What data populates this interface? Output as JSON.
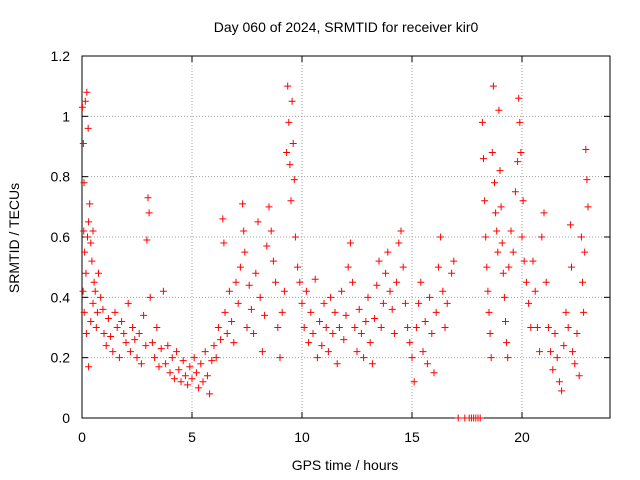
{
  "chart_data": {
    "type": "scatter",
    "title": "Day 060 of 2024, SRMTID for receiver kir0",
    "xlabel": "GPS time / hours",
    "ylabel": "SRMTID / TECUs",
    "xlim": [
      0,
      24
    ],
    "ylim": [
      0,
      1.2
    ],
    "xticks": [
      0,
      5,
      10,
      15,
      20
    ],
    "yticks": [
      0,
      0.2,
      0.4,
      0.6,
      0.8,
      1,
      1.2
    ],
    "ytick_labels": [
      "0",
      "0.2",
      "0.4",
      "0.6",
      "0.8",
      "1",
      "1.2"
    ],
    "grid": true,
    "marker": "+",
    "color": "#ff0000",
    "series": [
      {
        "name": "SRMTID",
        "points": [
          [
            0.02,
            1.03
          ],
          [
            0.06,
            0.91
          ],
          [
            0.09,
            0.78
          ],
          [
            0.15,
            1.05
          ],
          [
            0.22,
            1.08
          ],
          [
            0.28,
            0.96
          ],
          [
            0.35,
            0.71
          ],
          [
            0.08,
            0.62
          ],
          [
            0.12,
            0.55
          ],
          [
            0.18,
            0.48
          ],
          [
            0.25,
            0.6
          ],
          [
            0.3,
            0.65
          ],
          [
            0.4,
            0.58
          ],
          [
            0.45,
            0.52
          ],
          [
            0.5,
            0.62
          ],
          [
            0.55,
            0.45
          ],
          [
            0.6,
            0.42
          ],
          [
            0.7,
            0.35
          ],
          [
            0.05,
            0.42
          ],
          [
            0.1,
            0.35
          ],
          [
            0.2,
            0.28
          ],
          [
            0.3,
            0.17
          ],
          [
            0.4,
            0.32
          ],
          [
            0.5,
            0.38
          ],
          [
            0.65,
            0.3
          ],
          [
            0.75,
            0.48
          ],
          [
            0.85,
            0.4
          ],
          [
            0.95,
            0.36
          ],
          [
            1.0,
            0.28
          ],
          [
            1.1,
            0.24
          ],
          [
            1.2,
            0.33
          ],
          [
            1.3,
            0.27
          ],
          [
            1.4,
            0.22
          ],
          [
            1.5,
            0.35
          ],
          [
            1.6,
            0.3
          ],
          [
            1.7,
            0.2
          ],
          [
            1.8,
            0.32
          ],
          [
            1.9,
            0.28
          ],
          [
            2.0,
            0.25
          ],
          [
            2.1,
            0.38
          ],
          [
            2.2,
            0.22
          ],
          [
            2.3,
            0.3
          ],
          [
            2.4,
            0.26
          ],
          [
            2.5,
            0.2
          ],
          [
            2.6,
            0.28
          ],
          [
            2.7,
            0.18
          ],
          [
            2.8,
            0.34
          ],
          [
            2.9,
            0.24
          ],
          [
            3.0,
            0.73
          ],
          [
            3.05,
            0.68
          ],
          [
            2.95,
            0.59
          ],
          [
            3.1,
            0.4
          ],
          [
            3.2,
            0.25
          ],
          [
            3.3,
            0.2
          ],
          [
            3.4,
            0.3
          ],
          [
            3.5,
            0.17
          ],
          [
            3.6,
            0.23
          ],
          [
            3.7,
            0.42
          ],
          [
            3.8,
            0.18
          ],
          [
            3.9,
            0.24
          ],
          [
            4.0,
            0.15
          ],
          [
            4.1,
            0.2
          ],
          [
            4.2,
            0.13
          ],
          [
            4.3,
            0.22
          ],
          [
            4.4,
            0.16
          ],
          [
            4.5,
            0.12
          ],
          [
            4.6,
            0.19
          ],
          [
            4.7,
            0.14
          ],
          [
            4.8,
            0.11
          ],
          [
            4.9,
            0.17
          ],
          [
            5.0,
            0.13
          ],
          [
            5.1,
            0.2
          ],
          [
            5.2,
            0.15
          ],
          [
            5.3,
            0.1
          ],
          [
            5.4,
            0.18
          ],
          [
            5.5,
            0.12
          ],
          [
            5.6,
            0.22
          ],
          [
            5.7,
            0.14
          ],
          [
            5.8,
            0.08
          ],
          [
            5.9,
            0.19
          ],
          [
            6.0,
            0.24
          ],
          [
            6.1,
            0.2
          ],
          [
            6.2,
            0.3
          ],
          [
            6.3,
            0.26
          ],
          [
            6.4,
            0.66
          ],
          [
            6.45,
            0.58
          ],
          [
            6.5,
            0.35
          ],
          [
            6.6,
            0.28
          ],
          [
            6.7,
            0.42
          ],
          [
            6.8,
            0.32
          ],
          [
            6.9,
            0.25
          ],
          [
            7.0,
            0.45
          ],
          [
            7.1,
            0.38
          ],
          [
            7.2,
            0.5
          ],
          [
            7.3,
            0.71
          ],
          [
            7.35,
            0.62
          ],
          [
            7.4,
            0.55
          ],
          [
            7.5,
            0.3
          ],
          [
            7.6,
            0.44
          ],
          [
            7.7,
            0.36
          ],
          [
            7.8,
            0.28
          ],
          [
            7.9,
            0.48
          ],
          [
            8.0,
            0.65
          ],
          [
            8.1,
            0.4
          ],
          [
            8.2,
            0.22
          ],
          [
            8.3,
            0.34
          ],
          [
            8.4,
            0.57
          ],
          [
            8.5,
            0.7
          ],
          [
            8.6,
            0.62
          ],
          [
            8.7,
            0.52
          ],
          [
            8.8,
            0.45
          ],
          [
            8.9,
            0.3
          ],
          [
            9.0,
            0.2
          ],
          [
            9.1,
            0.35
          ],
          [
            9.2,
            0.42
          ],
          [
            9.3,
            0.88
          ],
          [
            9.35,
            1.1
          ],
          [
            9.4,
            0.98
          ],
          [
            9.45,
            0.84
          ],
          [
            9.5,
            0.72
          ],
          [
            9.55,
            1.05
          ],
          [
            9.6,
            0.91
          ],
          [
            9.65,
            0.79
          ],
          [
            9.7,
            0.6
          ],
          [
            9.8,
            0.5
          ],
          [
            9.9,
            0.45
          ],
          [
            10.0,
            0.38
          ],
          [
            10.1,
            0.3
          ],
          [
            10.2,
            0.42
          ],
          [
            10.3,
            0.25
          ],
          [
            10.4,
            0.35
          ],
          [
            10.5,
            0.28
          ],
          [
            10.6,
            0.46
          ],
          [
            10.7,
            0.2
          ],
          [
            10.8,
            0.32
          ],
          [
            10.9,
            0.24
          ],
          [
            11.0,
            0.38
          ],
          [
            11.1,
            0.3
          ],
          [
            11.2,
            0.22
          ],
          [
            11.3,
            0.4
          ],
          [
            11.4,
            0.28
          ],
          [
            11.5,
            0.35
          ],
          [
            11.6,
            0.18
          ],
          [
            11.7,
            0.3
          ],
          [
            11.8,
            0.42
          ],
          [
            11.9,
            0.26
          ],
          [
            12.0,
            0.34
          ],
          [
            12.1,
            0.5
          ],
          [
            12.2,
            0.58
          ],
          [
            12.3,
            0.45
          ],
          [
            12.4,
            0.3
          ],
          [
            12.5,
            0.22
          ],
          [
            12.6,
            0.36
          ],
          [
            12.7,
            0.28
          ],
          [
            12.8,
            0.2
          ],
          [
            12.9,
            0.32
          ],
          [
            13.0,
            0.4
          ],
          [
            13.1,
            0.25
          ],
          [
            13.2,
            0.18
          ],
          [
            13.3,
            0.33
          ],
          [
            13.4,
            0.44
          ],
          [
            13.5,
            0.52
          ],
          [
            13.6,
            0.3
          ],
          [
            13.7,
            0.38
          ],
          [
            13.8,
            0.48
          ],
          [
            13.9,
            0.55
          ],
          [
            14.0,
            0.42
          ],
          [
            14.1,
            0.36
          ],
          [
            14.2,
            0.28
          ],
          [
            14.3,
            0.45
          ],
          [
            14.4,
            0.58
          ],
          [
            14.5,
            0.62
          ],
          [
            14.6,
            0.5
          ],
          [
            14.7,
            0.38
          ],
          [
            14.8,
            0.3
          ],
          [
            14.9,
            0.25
          ],
          [
            15.0,
            0.2
          ],
          [
            15.1,
            0.12
          ],
          [
            15.2,
            0.3
          ],
          [
            15.3,
            0.38
          ],
          [
            15.4,
            0.45
          ],
          [
            15.5,
            0.22
          ],
          [
            15.6,
            0.32
          ],
          [
            15.7,
            0.18
          ],
          [
            15.8,
            0.4
          ],
          [
            15.9,
            0.28
          ],
          [
            16.0,
            0.15
          ],
          [
            16.1,
            0.35
          ],
          [
            16.2,
            0.5
          ],
          [
            16.3,
            0.6
          ],
          [
            16.4,
            0.42
          ],
          [
            16.5,
            0.3
          ],
          [
            16.6,
            0.38
          ],
          [
            16.8,
            0.48
          ],
          [
            16.9,
            0.52
          ],
          [
            17.1,
            0.0
          ],
          [
            17.4,
            0.0
          ],
          [
            17.6,
            0.0
          ],
          [
            17.7,
            0.0
          ],
          [
            17.8,
            0.0
          ],
          [
            17.9,
            0.0
          ],
          [
            18.0,
            0.0
          ],
          [
            18.1,
            0.0
          ],
          [
            18.2,
            0.98
          ],
          [
            18.25,
            0.86
          ],
          [
            18.3,
            0.72
          ],
          [
            18.35,
            0.6
          ],
          [
            18.4,
            0.5
          ],
          [
            18.45,
            0.42
          ],
          [
            18.5,
            0.35
          ],
          [
            18.55,
            0.28
          ],
          [
            18.6,
            0.2
          ],
          [
            18.65,
            0.88
          ],
          [
            18.7,
            1.1
          ],
          [
            18.75,
            0.78
          ],
          [
            18.8,
            0.68
          ],
          [
            18.85,
            0.62
          ],
          [
            18.9,
            0.55
          ],
          [
            18.95,
            1.02
          ],
          [
            19.0,
            0.82
          ],
          [
            19.05,
            0.7
          ],
          [
            19.1,
            0.58
          ],
          [
            19.15,
            0.48
          ],
          [
            19.2,
            0.4
          ],
          [
            19.25,
            0.32
          ],
          [
            19.3,
            0.25
          ],
          [
            19.35,
            0.2
          ],
          [
            19.4,
            0.5
          ],
          [
            19.5,
            0.62
          ],
          [
            19.6,
            0.55
          ],
          [
            19.7,
            0.75
          ],
          [
            19.8,
            0.85
          ],
          [
            19.85,
            1.06
          ],
          [
            19.9,
            0.98
          ],
          [
            19.95,
            0.88
          ],
          [
            20.0,
            0.6
          ],
          [
            20.05,
            0.72
          ],
          [
            20.1,
            0.52
          ],
          [
            20.2,
            0.45
          ],
          [
            20.3,
            0.38
          ],
          [
            20.4,
            0.3
          ],
          [
            20.5,
            0.52
          ],
          [
            20.6,
            0.42
          ],
          [
            20.7,
            0.3
          ],
          [
            20.8,
            0.22
          ],
          [
            20.9,
            0.6
          ],
          [
            21.0,
            0.68
          ],
          [
            21.1,
            0.45
          ],
          [
            21.2,
            0.3
          ],
          [
            21.3,
            0.22
          ],
          [
            21.4,
            0.16
          ],
          [
            21.5,
            0.28
          ],
          [
            21.6,
            0.2
          ],
          [
            21.7,
            0.12
          ],
          [
            21.8,
            0.09
          ],
          [
            21.9,
            0.24
          ],
          [
            22.0,
            0.35
          ],
          [
            22.1,
            0.3
          ],
          [
            22.2,
            0.64
          ],
          [
            22.25,
            0.5
          ],
          [
            22.3,
            0.22
          ],
          [
            22.4,
            0.18
          ],
          [
            22.5,
            0.28
          ],
          [
            22.6,
            0.14
          ],
          [
            22.7,
            0.6
          ],
          [
            22.75,
            0.45
          ],
          [
            22.8,
            0.35
          ],
          [
            22.85,
            0.55
          ],
          [
            22.9,
            0.89
          ],
          [
            22.95,
            0.79
          ],
          [
            23.0,
            0.7
          ]
        ]
      }
    ]
  }
}
